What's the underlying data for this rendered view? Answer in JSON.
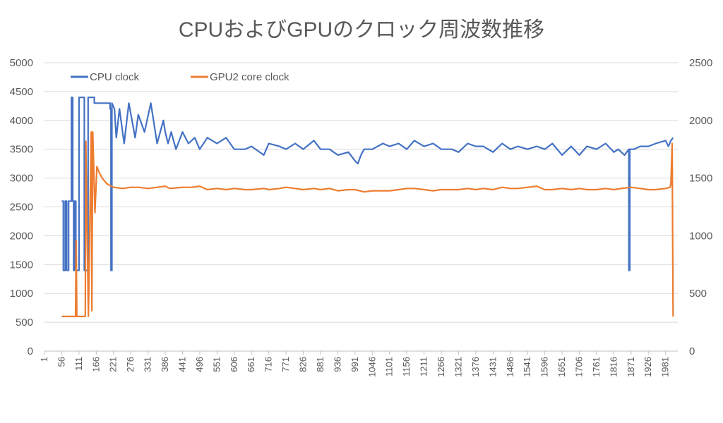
{
  "chart_data": {
    "type": "line",
    "title": "CPUおよびGPUのクロック周波数推移",
    "xlabel": "",
    "ylabel": "",
    "xlim": [
      1,
      2020
    ],
    "ylim": [
      0,
      5000
    ],
    "y2lim": [
      0,
      2500
    ],
    "yticks": [
      "0",
      "500",
      "1000",
      "1500",
      "2000",
      "2500",
      "3000",
      "3500",
      "4000",
      "4500",
      "5000"
    ],
    "y2ticks": [
      "0",
      "500",
      "1000",
      "1500",
      "2000",
      "2500"
    ],
    "xticks": [
      "1",
      "56",
      "111",
      "166",
      "221",
      "276",
      "331",
      "386",
      "441",
      "496",
      "551",
      "606",
      "661",
      "716",
      "771",
      "826",
      "881",
      "936",
      "991",
      "1046",
      "1101",
      "1156",
      "1211",
      "1266",
      "1321",
      "1376",
      "1431",
      "1486",
      "1541",
      "1596",
      "1651",
      "1706",
      "1761",
      "1816",
      "1871",
      "1926",
      "1981"
    ],
    "grid": true,
    "legend": "top-left",
    "colors": {
      "cpu": "#4472C4",
      "gpu": "#ED7D31"
    },
    "series": [
      {
        "name": "CPU clock",
        "axis": "left",
        "x": [
          1,
          56,
          61,
          61,
          67,
          67,
          72,
          72,
          78,
          78,
          87,
          87,
          91,
          91,
          94,
          94,
          96,
          96,
          101,
          101,
          111,
          111,
          128,
          128,
          140,
          140,
          160,
          160,
          170,
          200,
          210,
          210,
          213,
          213,
          216,
          216,
          224,
          230,
          240,
          255,
          270,
          290,
          300,
          320,
          340,
          360,
          380,
          386,
          395,
          405,
          420,
          441,
          460,
          480,
          496,
          520,
          551,
          580,
          606,
          640,
          661,
          700,
          716,
          750,
          771,
          800,
          826,
          860,
          881,
          910,
          936,
          970,
          991,
          1000,
          1010,
          1020,
          1046,
          1080,
          1101,
          1130,
          1156,
          1180,
          1211,
          1240,
          1266,
          1300,
          1321,
          1350,
          1376,
          1400,
          1431,
          1460,
          1486,
          1510,
          1541,
          1570,
          1596,
          1620,
          1651,
          1680,
          1706,
          1730,
          1761,
          1790,
          1816,
          1830,
          1850,
          1864,
          1864,
          1867,
          1867,
          1880,
          1900,
          1926,
          1950,
          1981,
          1990,
          1998,
          2005
        ],
        "y": [
          null,
          2600,
          2600,
          1400,
          1400,
          2600,
          2600,
          1400,
          1400,
          2600,
          2600,
          4400,
          4400,
          2600,
          2600,
          1400,
          1400,
          2600,
          2600,
          1400,
          1400,
          4400,
          4400,
          1400,
          1400,
          4400,
          4400,
          4300,
          4300,
          4300,
          4300,
          4200,
          4200,
          1400,
          1400,
          4300,
          4200,
          3700,
          4200,
          3600,
          4300,
          3700,
          4100,
          3800,
          4300,
          3600,
          4000,
          3800,
          3600,
          3800,
          3500,
          3800,
          3600,
          3700,
          3500,
          3700,
          3600,
          3700,
          3500,
          3500,
          3550,
          3400,
          3600,
          3550,
          3500,
          3600,
          3500,
          3650,
          3500,
          3500,
          3400,
          3450,
          3300,
          3250,
          3400,
          3500,
          3500,
          3600,
          3550,
          3600,
          3500,
          3650,
          3550,
          3600,
          3500,
          3500,
          3450,
          3600,
          3550,
          3550,
          3450,
          3600,
          3500,
          3550,
          3500,
          3550,
          3500,
          3600,
          3400,
          3550,
          3400,
          3550,
          3500,
          3600,
          3450,
          3500,
          3400,
          3500,
          1400,
          1400,
          3500,
          3500,
          3550,
          3550,
          3600,
          3650,
          3550,
          3650,
          3700
        ]
      },
      {
        "name": "GPU2 core clock",
        "axis": "right",
        "x": [
          1,
          56,
          56,
          100,
          100,
          102,
          102,
          104,
          104,
          131,
          131,
          133,
          133,
          141,
          141,
          150,
          150,
          152,
          152,
          155,
          155,
          162,
          162,
          168,
          168,
          175,
          185,
          200,
          221,
          250,
          276,
          300,
          331,
          360,
          386,
          400,
          441,
          470,
          496,
          520,
          551,
          580,
          606,
          640,
          661,
          700,
          716,
          750,
          771,
          800,
          826,
          860,
          881,
          910,
          936,
          970,
          991,
          1020,
          1046,
          1070,
          1101,
          1130,
          1156,
          1180,
          1211,
          1240,
          1266,
          1300,
          1321,
          1350,
          1376,
          1400,
          1431,
          1460,
          1486,
          1510,
          1541,
          1570,
          1596,
          1620,
          1651,
          1680,
          1706,
          1730,
          1761,
          1790,
          1816,
          1840,
          1871,
          1900,
          1926,
          1950,
          1981,
          1995,
          1998,
          2002,
          2005
        ],
        "y": [
          null,
          300,
          300,
          300,
          300,
          960,
          960,
          300,
          300,
          300,
          300,
          1820,
          1820,
          300,
          300,
          1900,
          1900,
          350,
          350,
          1900,
          1900,
          1200,
          1200,
          1600,
          1600,
          1550,
          1500,
          1450,
          1420,
          1410,
          1420,
          1420,
          1410,
          1420,
          1430,
          1410,
          1420,
          1420,
          1430,
          1400,
          1410,
          1400,
          1410,
          1400,
          1400,
          1410,
          1400,
          1410,
          1420,
          1410,
          1400,
          1410,
          1400,
          1410,
          1390,
          1400,
          1400,
          1380,
          1390,
          1390,
          1390,
          1400,
          1410,
          1410,
          1400,
          1390,
          1400,
          1400,
          1400,
          1410,
          1400,
          1410,
          1400,
          1420,
          1410,
          1410,
          1420,
          1430,
          1400,
          1400,
          1410,
          1400,
          1410,
          1400,
          1400,
          1410,
          1400,
          1410,
          1420,
          1410,
          1400,
          1400,
          1410,
          1420,
          1450,
          1800,
          300
        ]
      }
    ]
  }
}
